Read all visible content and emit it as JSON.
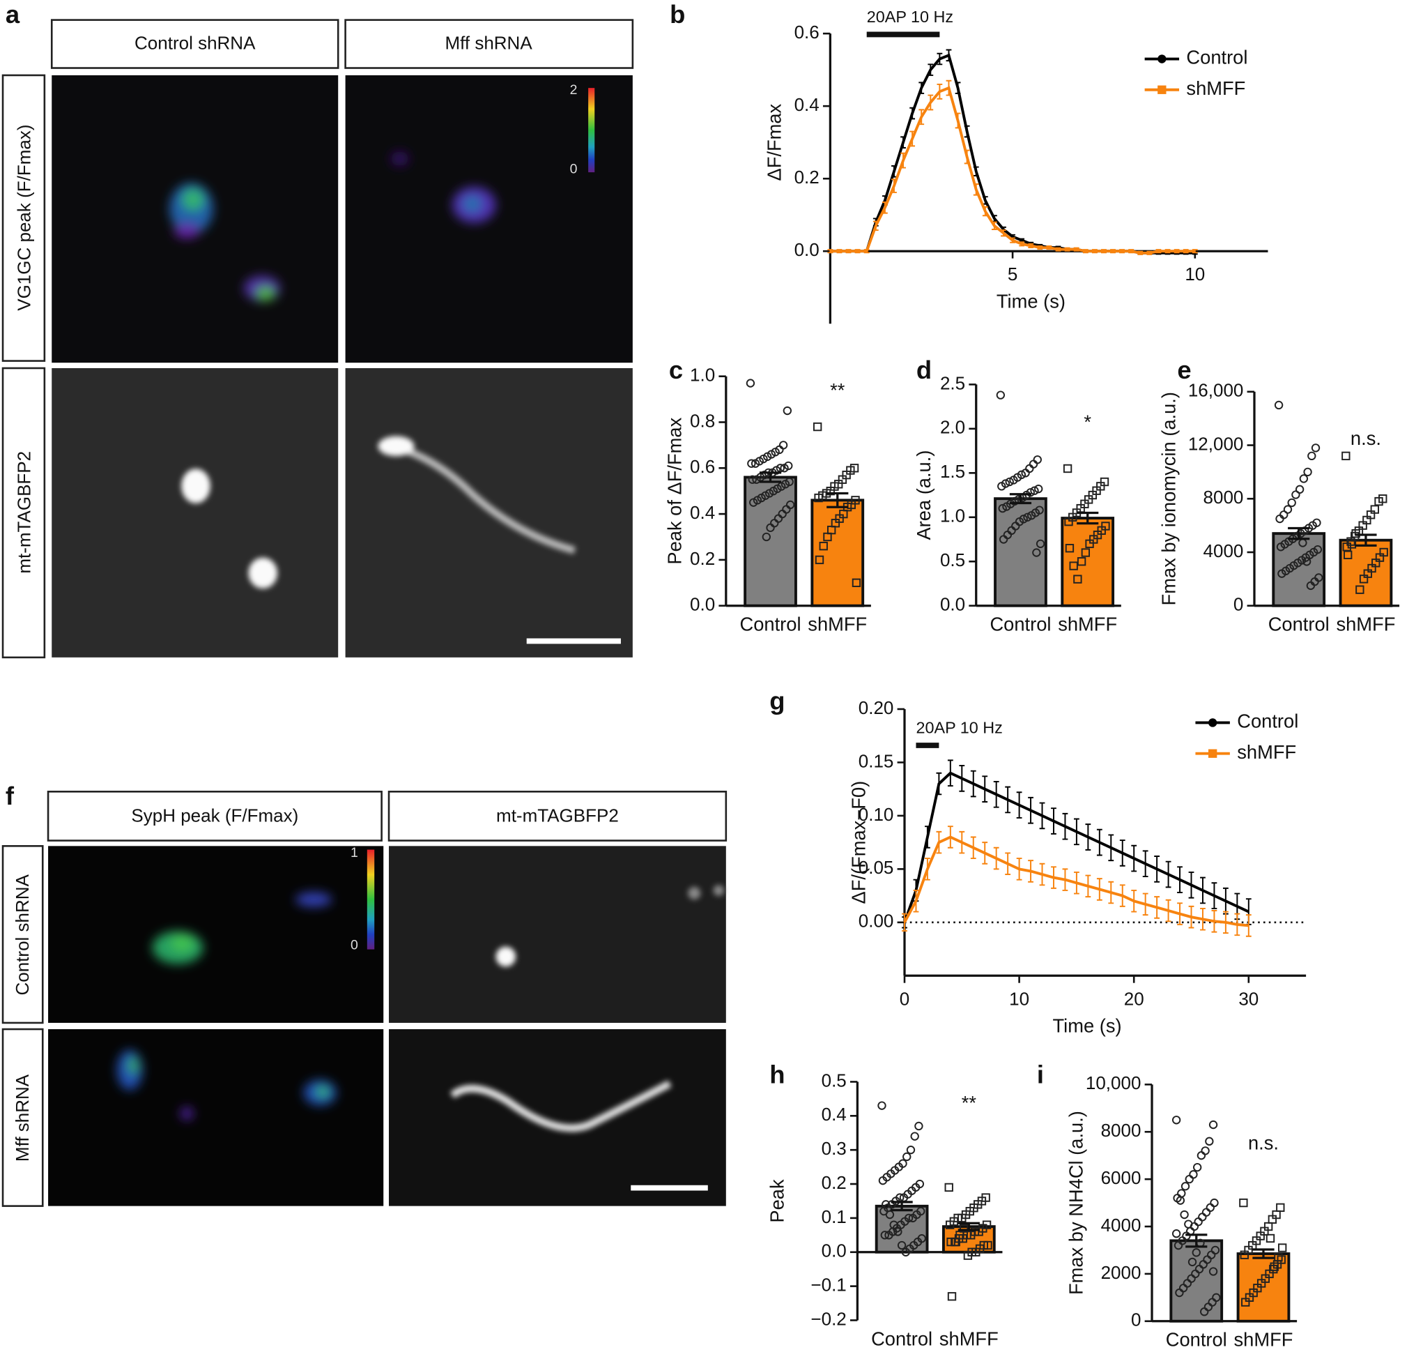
{
  "image_panels": {
    "a": {
      "label": "a",
      "columns": [
        "Control shRNA",
        "Mff shRNA"
      ],
      "rows": [
        "VG1GC peak (F/Fmax)",
        "mt-mTAGBFP2"
      ],
      "colorbar": [
        "2",
        "0"
      ]
    },
    "f": {
      "label": "f",
      "columns": [
        "SypH peak (F/Fmax)",
        "mt-mTAGBFP2"
      ],
      "rows": [
        "Control shRNA",
        "Mff shRNA"
      ],
      "colorbar": [
        "1",
        "0"
      ]
    }
  },
  "chart_data": [
    {
      "type": "line",
      "panel": "b",
      "ylabel": "ΔF/Fmax",
      "xlabel": "Time (s)",
      "xlim": [
        0,
        12
      ],
      "ylim": [
        -0.2,
        0.6
      ],
      "xticks": [
        5,
        10
      ],
      "yticks": [
        {
          "value": 0,
          "label": "0.0"
        },
        0.2,
        0.4,
        0.6
      ],
      "x_axis_at_zero": true,
      "stimulus": {
        "label": "20AP 10 Hz",
        "x": [
          1,
          3
        ]
      },
      "legend": "upper right",
      "x": [
        0,
        0.25,
        0.5,
        0.75,
        1,
        1.25,
        1.5,
        1.75,
        2,
        2.25,
        2.5,
        2.75,
        3,
        3.25,
        3.5,
        3.75,
        4,
        4.25,
        4.5,
        4.75,
        5,
        5.25,
        5.5,
        5.75,
        6,
        6.25,
        6.5,
        6.75,
        7,
        7.25,
        7.5,
        7.75,
        8,
        8.25,
        8.5,
        8.75,
        9,
        9.25,
        9.5,
        9.75,
        10
      ],
      "series": [
        {
          "name": "Control",
          "color": "#000000",
          "marker": "circle",
          "values": [
            0,
            0,
            0,
            0,
            0,
            0.08,
            0.14,
            0.22,
            0.3,
            0.38,
            0.45,
            0.5,
            0.53,
            0.54,
            0.45,
            0.33,
            0.22,
            0.14,
            0.09,
            0.06,
            0.04,
            0.03,
            0.02,
            0.015,
            0.01,
            0.01,
            0.005,
            0.005,
            0,
            0,
            0,
            0,
            0,
            0,
            -0.005,
            -0.005,
            -0.005,
            -0.005,
            -0.005,
            -0.005,
            -0.005
          ],
          "errors": [
            0.003,
            0.003,
            0.003,
            0.003,
            0.003,
            0.01,
            0.012,
            0.015,
            0.015,
            0.015,
            0.015,
            0.015,
            0.015,
            0.015,
            0.015,
            0.015,
            0.012,
            0.01,
            0.008,
            0.006,
            0.005,
            0.004,
            0.004,
            0.003,
            0.003,
            0.003,
            0.003,
            0.003,
            0.003,
            0.003,
            0.003,
            0.003,
            0.003,
            0.003,
            0.003,
            0.003,
            0.003,
            0.003,
            0.003,
            0.003,
            0.003
          ]
        },
        {
          "name": "shMFF",
          "color": "#f7830f",
          "marker": "square",
          "values": [
            0,
            0,
            0,
            0,
            0,
            0.07,
            0.12,
            0.18,
            0.25,
            0.31,
            0.37,
            0.41,
            0.44,
            0.45,
            0.36,
            0.26,
            0.17,
            0.11,
            0.07,
            0.05,
            0.03,
            0.02,
            0.015,
            0.01,
            0.01,
            0.005,
            0.005,
            0.005,
            0,
            0,
            0,
            0,
            0,
            0,
            -0.005,
            -0.005,
            0,
            0,
            0,
            0,
            0
          ],
          "errors": [
            0.004,
            0.004,
            0.004,
            0.004,
            0.004,
            0.012,
            0.015,
            0.018,
            0.02,
            0.02,
            0.02,
            0.02,
            0.02,
            0.02,
            0.02,
            0.018,
            0.015,
            0.012,
            0.01,
            0.008,
            0.006,
            0.005,
            0.005,
            0.004,
            0.004,
            0.004,
            0.004,
            0.004,
            0.004,
            0.004,
            0.004,
            0.004,
            0.004,
            0.004,
            0.004,
            0.004,
            0.004,
            0.004,
            0.004,
            0.004,
            0.004
          ]
        }
      ]
    },
    {
      "type": "bar",
      "panel": "c",
      "ylabel": "Peak of ΔF/Fmax",
      "ylim": [
        0,
        1
      ],
      "yticks": [
        {
          "value": 0,
          "label": "0.0"
        },
        0.2,
        0.4,
        0.6,
        0.8,
        {
          "value": 1,
          "label": "1.0"
        }
      ],
      "categories": [
        "Control",
        "shMFF"
      ],
      "values": [
        0.56,
        0.46
      ],
      "errors": [
        0.02,
        0.03
      ],
      "colors": [
        "#808080",
        "#f7830f"
      ],
      "markers": [
        "circle",
        "square"
      ],
      "annotation": "**",
      "points": [
        [
          0.97,
          0.85,
          0.7,
          0.68,
          0.67,
          0.66,
          0.65,
          0.64,
          0.63,
          0.62,
          0.62,
          0.61,
          0.6,
          0.6,
          0.59,
          0.58,
          0.58,
          0.57,
          0.56,
          0.55,
          0.55,
          0.54,
          0.53,
          0.52,
          0.51,
          0.5,
          0.49,
          0.48,
          0.47,
          0.46,
          0.45,
          0.44,
          0.42,
          0.4,
          0.38,
          0.36,
          0.34,
          0.3
        ],
        [
          0.78,
          0.6,
          0.59,
          0.57,
          0.55,
          0.53,
          0.52,
          0.5,
          0.49,
          0.48,
          0.47,
          0.46,
          0.44,
          0.43,
          0.4,
          0.38,
          0.36,
          0.33,
          0.3,
          0.26,
          0.2,
          0.1
        ]
      ]
    },
    {
      "type": "bar",
      "panel": "d",
      "ylabel": "Area (a.u.)",
      "ylim": [
        0,
        2.5
      ],
      "yticks": [
        {
          "value": 0,
          "label": "0.0"
        },
        0.5,
        {
          "value": 1,
          "label": "1.0"
        },
        1.5,
        {
          "value": 2,
          "label": "2.0"
        },
        2.5
      ],
      "categories": [
        "Control",
        "shMFF"
      ],
      "values": [
        1.21,
        0.99
      ],
      "errors": [
        0.05,
        0.06
      ],
      "colors": [
        "#808080",
        "#f7830f"
      ],
      "markers": [
        "circle",
        "square"
      ],
      "annotation": "*",
      "points": [
        [
          2.38,
          1.65,
          1.6,
          1.55,
          1.5,
          1.48,
          1.45,
          1.42,
          1.4,
          1.38,
          1.35,
          1.32,
          1.3,
          1.28,
          1.25,
          1.22,
          1.2,
          1.18,
          1.15,
          1.12,
          1.1,
          1.08,
          1.05,
          1.02,
          1.0,
          0.98,
          0.95,
          0.9,
          0.85,
          0.8,
          0.75,
          0.7,
          0.6
        ],
        [
          1.55,
          1.4,
          1.35,
          1.3,
          1.25,
          1.2,
          1.15,
          1.1,
          1.05,
          1.0,
          0.95,
          0.9,
          0.85,
          0.8,
          0.75,
          0.7,
          0.6,
          0.5,
          0.3,
          0.45,
          0.65
        ]
      ]
    },
    {
      "type": "bar",
      "panel": "e",
      "ylabel": "Fmax by ionomycin (a.u.)",
      "ylim": [
        0,
        16000
      ],
      "yticks": [
        0,
        4000,
        8000,
        {
          "value": 12000,
          "label": "12,000"
        },
        {
          "value": 16000,
          "label": "16,000"
        }
      ],
      "categories": [
        "Control",
        "shMFF"
      ],
      "values": [
        5400,
        4900
      ],
      "errors": [
        400,
        400
      ],
      "colors": [
        "#808080",
        "#f7830f"
      ],
      "markers": [
        "circle",
        "square"
      ],
      "annotation": "n.s.",
      "points": [
        [
          15000,
          11800,
          11200,
          10000,
          9500,
          8700,
          8300,
          7700,
          7200,
          6800,
          6500,
          6200,
          6000,
          5800,
          5600,
          5400,
          5200,
          5000,
          4800,
          4600,
          4400,
          4200,
          4000,
          3800,
          3600,
          3400,
          3200,
          3000,
          2800,
          2600,
          2400,
          2100,
          1800,
          1500,
          3300,
          4700
        ],
        [
          11200,
          8000,
          7800,
          7200,
          6800,
          6400,
          6000,
          5600,
          5200,
          4800,
          4400,
          4000,
          3600,
          3200,
          2800,
          2400,
          2000,
          1200,
          5400,
          4600,
          3800
        ]
      ]
    },
    {
      "type": "line",
      "panel": "g",
      "ylabel": "ΔF/(Fmax−F0)",
      "xlabel": "Time (s)",
      "xlim": [
        0,
        35
      ],
      "ylim": [
        -0.05,
        0.2
      ],
      "xticks": [
        0,
        10,
        20,
        30
      ],
      "yticks": [
        {
          "value": 0,
          "label": "0.00"
        },
        {
          "value": 0.05,
          "label": "0.05"
        },
        {
          "value": 0.1,
          "label": "0.10"
        },
        {
          "value": 0.15,
          "label": "0.15"
        },
        {
          "value": 0.2,
          "label": "0.20"
        }
      ],
      "zero_line": true,
      "stimulus": {
        "label": "20AP 10 Hz",
        "x": [
          1,
          3
        ]
      },
      "legend": "upper right",
      "x": [
        0,
        1,
        2,
        3,
        4,
        5,
        6,
        7,
        8,
        9,
        10,
        11,
        12,
        13,
        14,
        15,
        16,
        17,
        18,
        19,
        20,
        21,
        22,
        23,
        24,
        25,
        26,
        27,
        28,
        29,
        30
      ],
      "series": [
        {
          "name": "Control",
          "color": "#000000",
          "marker": "circle",
          "values": [
            0,
            0.03,
            0.08,
            0.13,
            0.14,
            0.135,
            0.13,
            0.125,
            0.12,
            0.115,
            0.11,
            0.105,
            0.1,
            0.095,
            0.09,
            0.085,
            0.08,
            0.075,
            0.07,
            0.065,
            0.06,
            0.055,
            0.05,
            0.045,
            0.04,
            0.035,
            0.03,
            0.025,
            0.02,
            0.015,
            0.01
          ],
          "errors": [
            0.005,
            0.01,
            0.01,
            0.01,
            0.012,
            0.012,
            0.012,
            0.012,
            0.012,
            0.012,
            0.012,
            0.012,
            0.012,
            0.012,
            0.012,
            0.012,
            0.012,
            0.012,
            0.012,
            0.012,
            0.012,
            0.012,
            0.012,
            0.012,
            0.012,
            0.012,
            0.012,
            0.012,
            0.012,
            0.012,
            0.012
          ]
        },
        {
          "name": "shMFF",
          "color": "#f7830f",
          "marker": "square",
          "values": [
            0,
            0.02,
            0.05,
            0.075,
            0.08,
            0.075,
            0.07,
            0.065,
            0.06,
            0.055,
            0.05,
            0.048,
            0.045,
            0.042,
            0.04,
            0.037,
            0.034,
            0.031,
            0.028,
            0.025,
            0.02,
            0.017,
            0.014,
            0.011,
            0.008,
            0.005,
            0.003,
            0.001,
            0,
            -0.002,
            -0.003
          ],
          "errors": [
            0.008,
            0.01,
            0.01,
            0.01,
            0.01,
            0.01,
            0.01,
            0.01,
            0.01,
            0.01,
            0.01,
            0.01,
            0.01,
            0.01,
            0.01,
            0.01,
            0.01,
            0.01,
            0.01,
            0.01,
            0.01,
            0.01,
            0.01,
            0.01,
            0.01,
            0.01,
            0.01,
            0.01,
            0.01,
            0.01,
            0.01
          ]
        }
      ]
    },
    {
      "type": "bar",
      "panel": "h",
      "ylabel": "Peak",
      "ylim": [
        -0.2,
        0.5
      ],
      "x_axis_at_zero": true,
      "yticks": [
        {
          "value": -0.2,
          "label": "−0.2"
        },
        {
          "value": -0.1,
          "label": "−0.1"
        },
        {
          "value": 0,
          "label": "0.0"
        },
        0.1,
        0.2,
        0.3,
        0.4,
        0.5
      ],
      "categories": [
        "Control",
        "shMFF"
      ],
      "values": [
        0.135,
        0.075
      ],
      "errors": [
        0.012,
        0.01
      ],
      "colors": [
        "#808080",
        "#f7830f"
      ],
      "markers": [
        "circle",
        "square"
      ],
      "annotation": "**",
      "points": [
        [
          0.43,
          0.37,
          0.34,
          0.3,
          0.28,
          0.26,
          0.25,
          0.24,
          0.23,
          0.22,
          0.21,
          0.2,
          0.19,
          0.18,
          0.17,
          0.16,
          0.16,
          0.15,
          0.14,
          0.13,
          0.12,
          0.12,
          0.11,
          0.1,
          0.1,
          0.09,
          0.08,
          0.07,
          0.06,
          0.05,
          0.05,
          0.04,
          0.03,
          0.02,
          0.01,
          0.0,
          0.02,
          0.06,
          0.08,
          0.11,
          0.14
        ],
        [
          0.19,
          0.16,
          0.15,
          0.14,
          0.13,
          0.12,
          0.11,
          0.1,
          0.1,
          0.09,
          0.08,
          0.08,
          0.07,
          0.06,
          0.06,
          0.05,
          0.05,
          0.04,
          0.04,
          0.03,
          0.03,
          0.02,
          0.02,
          0.01,
          0.0,
          0.0,
          -0.01,
          0.07,
          0.05,
          0.03,
          -0.13
        ]
      ]
    },
    {
      "type": "bar",
      "panel": "i",
      "ylabel": "Fmax by NH4Cl (a.u.)",
      "ylim": [
        0,
        10000
      ],
      "yticks": [
        0,
        2000,
        4000,
        6000,
        8000,
        {
          "value": 10000,
          "label": "10,000"
        }
      ],
      "categories": [
        "Control",
        "shMFF"
      ],
      "values": [
        3400,
        2850
      ],
      "errors": [
        250,
        180
      ],
      "colors": [
        "#808080",
        "#f7830f"
      ],
      "markers": [
        "circle",
        "square"
      ],
      "annotation": "n.s.",
      "points": [
        [
          8500,
          8300,
          7600,
          7200,
          7000,
          6500,
          6200,
          6000,
          5700,
          5400,
          5200,
          5000,
          4800,
          4600,
          4400,
          4200,
          4000,
          3800,
          3600,
          3400,
          3200,
          3000,
          2800,
          2600,
          2400,
          2200,
          2000,
          1800,
          1600,
          1400,
          1200,
          1000,
          800,
          600,
          400,
          3300,
          2900,
          2500,
          4100,
          4500,
          5100,
          3700,
          2100
        ],
        [
          5000,
          4800,
          4500,
          4300,
          4000,
          3800,
          3600,
          3400,
          3200,
          3000,
          2800,
          2600,
          2400,
          2200,
          2000,
          1800,
          1600,
          1400,
          1200,
          1000,
          800,
          3100,
          2700,
          2300,
          3500
        ]
      ]
    }
  ]
}
